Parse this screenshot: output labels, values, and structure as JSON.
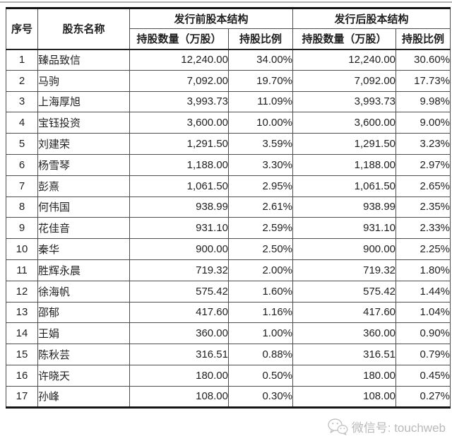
{
  "table": {
    "header": {
      "index": "序号",
      "name": "股东名称",
      "pre_group": "发行前股本结构",
      "post_group": "发行后股本结构",
      "quantity": "持股数量（万股）",
      "ratio": "持股比例"
    },
    "rows": [
      {
        "no": "1",
        "name": "臻品致信",
        "pre_qty": "12,240.00",
        "pre_pct": "34.00%",
        "post_qty": "12,240.00",
        "post_pct": "30.60%"
      },
      {
        "no": "2",
        "name": "马驹",
        "pre_qty": "7,092.00",
        "pre_pct": "19.70%",
        "post_qty": "7,092.00",
        "post_pct": "17.73%"
      },
      {
        "no": "3",
        "name": "上海厚旭",
        "pre_qty": "3,993.73",
        "pre_pct": "11.09%",
        "post_qty": "3,993.73",
        "post_pct": "9.98%"
      },
      {
        "no": "4",
        "name": "宝钰投资",
        "pre_qty": "3,600.00",
        "pre_pct": "10.00%",
        "post_qty": "3,600.00",
        "post_pct": "9.00%"
      },
      {
        "no": "5",
        "name": "刘建荣",
        "pre_qty": "1,291.50",
        "pre_pct": "3.59%",
        "post_qty": "1,291.50",
        "post_pct": "3.23%"
      },
      {
        "no": "6",
        "name": "杨雪琴",
        "pre_qty": "1,188.00",
        "pre_pct": "3.30%",
        "post_qty": "1,188.00",
        "post_pct": "2.97%"
      },
      {
        "no": "7",
        "name": "彭熹",
        "pre_qty": "1,061.50",
        "pre_pct": "2.95%",
        "post_qty": "1,061.50",
        "post_pct": "2.65%"
      },
      {
        "no": "8",
        "name": "何伟国",
        "pre_qty": "938.99",
        "pre_pct": "2.61%",
        "post_qty": "938.99",
        "post_pct": "2.35%"
      },
      {
        "no": "9",
        "name": "花佳音",
        "pre_qty": "931.10",
        "pre_pct": "2.59%",
        "post_qty": "931.10",
        "post_pct": "2.33%"
      },
      {
        "no": "10",
        "name": "秦华",
        "pre_qty": "900.00",
        "pre_pct": "2.50%",
        "post_qty": "900.00",
        "post_pct": "2.25%"
      },
      {
        "no": "11",
        "name": "胜辉永晨",
        "pre_qty": "719.32",
        "pre_pct": "2.00%",
        "post_qty": "719.32",
        "post_pct": "1.80%"
      },
      {
        "no": "12",
        "name": "徐海帆",
        "pre_qty": "575.42",
        "pre_pct": "1.60%",
        "post_qty": "575.42",
        "post_pct": "1.44%"
      },
      {
        "no": "13",
        "name": "邵郁",
        "pre_qty": "417.60",
        "pre_pct": "1.16%",
        "post_qty": "417.60",
        "post_pct": "1.04%"
      },
      {
        "no": "14",
        "name": "王娟",
        "pre_qty": "360.00",
        "pre_pct": "1.00%",
        "post_qty": "360.00",
        "post_pct": "0.90%"
      },
      {
        "no": "15",
        "name": "陈秋芸",
        "pre_qty": "316.51",
        "pre_pct": "0.88%",
        "post_qty": "316.51",
        "post_pct": "0.79%"
      },
      {
        "no": "16",
        "name": "许晓天",
        "pre_qty": "180.00",
        "pre_pct": "0.50%",
        "post_qty": "180.00",
        "post_pct": "0.45%"
      },
      {
        "no": "17",
        "name": "孙峰",
        "pre_qty": "108.00",
        "pre_pct": "0.30%",
        "post_qty": "108.00",
        "post_pct": "0.27%"
      }
    ]
  },
  "footer": {
    "wechat_label": "微信号: touchweb"
  },
  "colors": {
    "background": "#ffffff",
    "text": "#1f1f1f",
    "grid_line": "#4d4d4d",
    "outer_border": "#141414",
    "top_hairline": "#b4b4b4",
    "watermark": "#b9b9b9"
  }
}
